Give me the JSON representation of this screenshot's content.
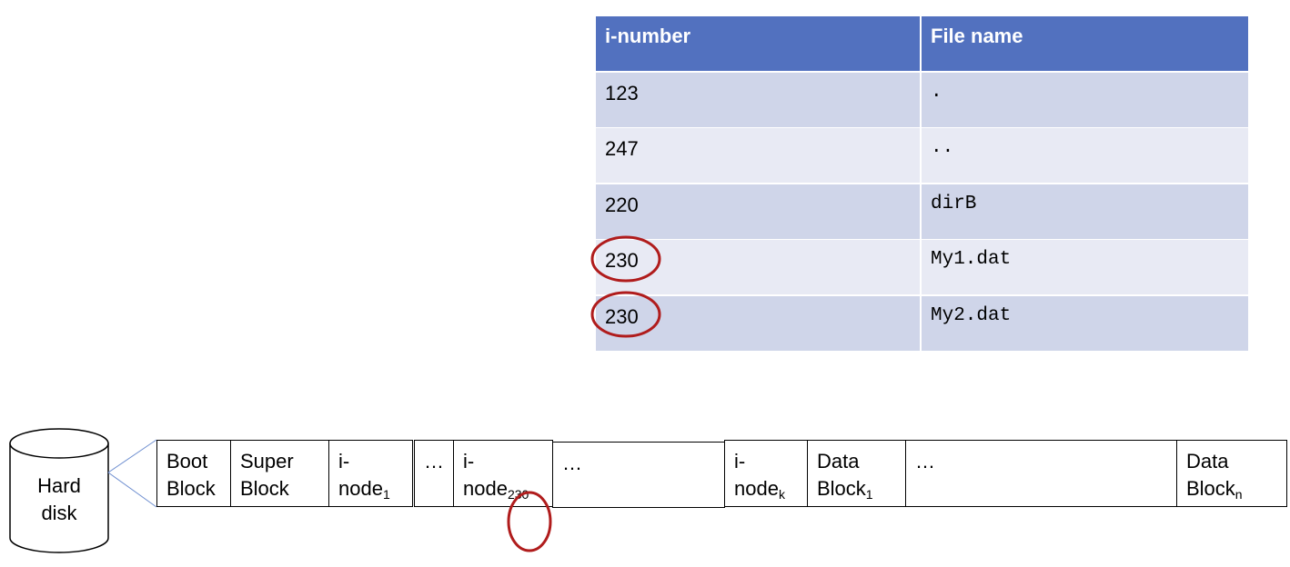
{
  "table": {
    "headers": [
      "i-number",
      "File name"
    ],
    "rows": [
      {
        "inumber": "123",
        "name": "."
      },
      {
        "inumber": "247",
        "name": ".."
      },
      {
        "inumber": "220",
        "name": "dirB"
      },
      {
        "inumber": "230",
        "name": "My1.dat",
        "highlighted": true
      },
      {
        "inumber": "230",
        "name": "My2.dat",
        "highlighted": true
      }
    ]
  },
  "disk": {
    "label_line1": "Hard",
    "label_line2": "disk",
    "blocks": [
      {
        "l1": "Boot",
        "l2": "Block"
      },
      {
        "l1": "Super",
        "l2": "Block"
      },
      {
        "l1": "i-",
        "l2": "node",
        "sub": "1"
      },
      {
        "l1": "…"
      },
      {
        "l1": "i-",
        "l2": "node",
        "sub": "230",
        "highlighted": true
      },
      {
        "l1": "…"
      },
      {
        "l1": "i-",
        "l2": "node",
        "sub": "k"
      },
      {
        "l1": "Data",
        "l2": "Block",
        "sub": "1"
      },
      {
        "l1": "…"
      },
      {
        "l1": "Data",
        "l2": "Block",
        "sub": "n"
      }
    ]
  },
  "colors": {
    "header": "#5271bf",
    "highlight": "#b01c1c"
  }
}
